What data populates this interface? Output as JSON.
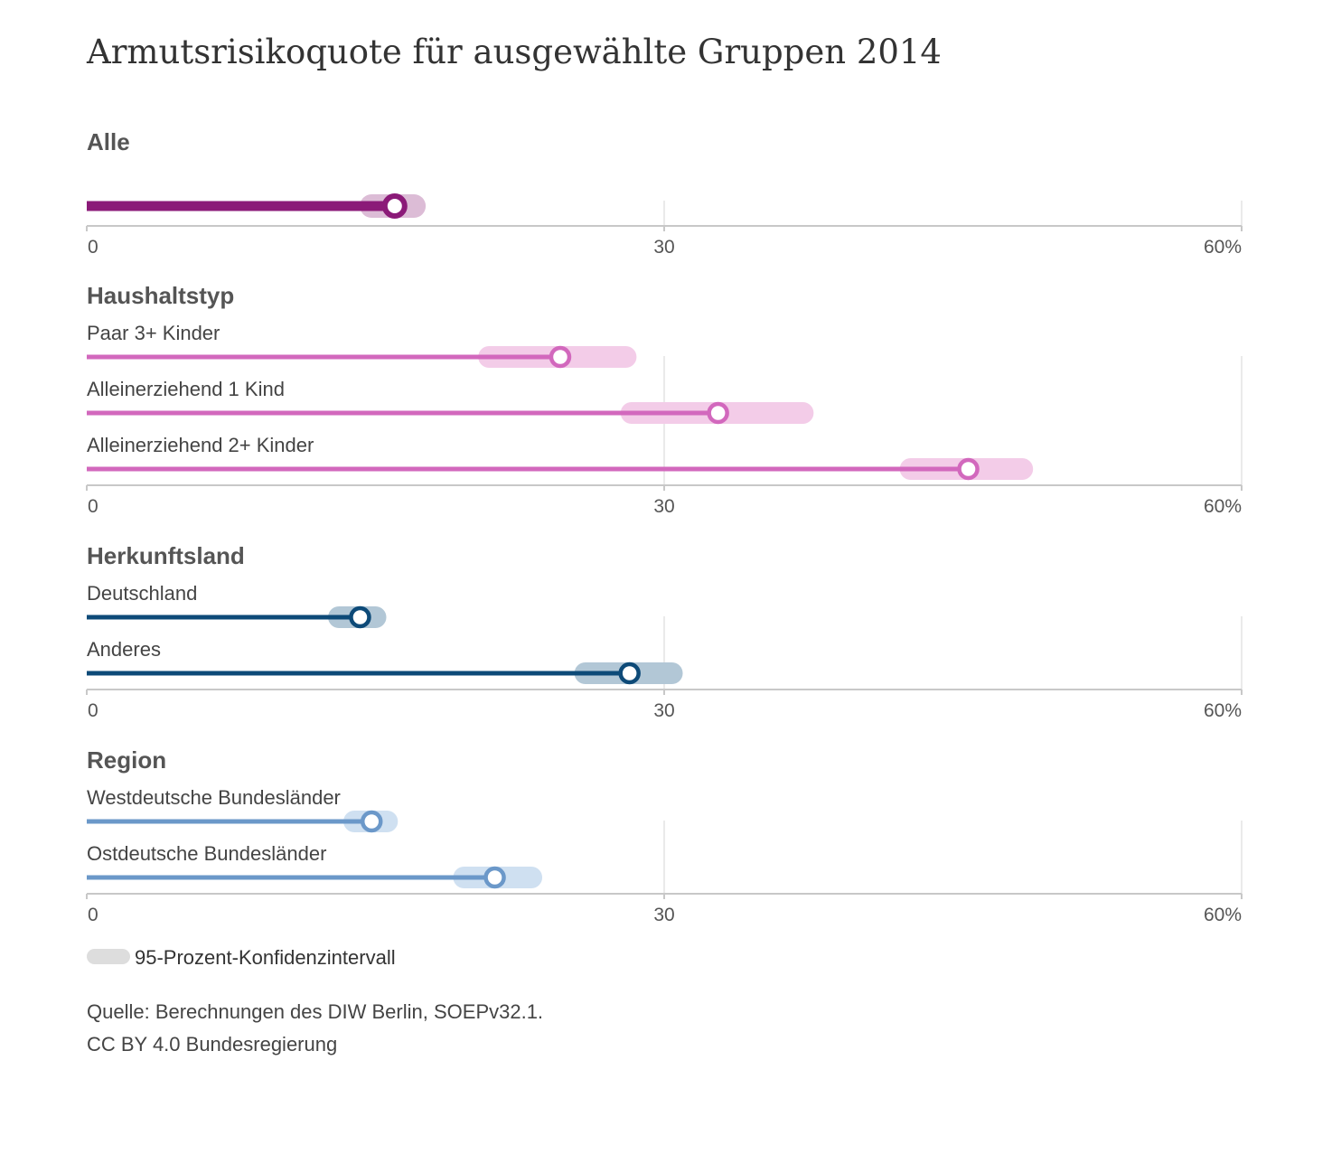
{
  "chart_data": {
    "type": "dot-range",
    "title": "Armutsrisikoquote für ausgewählte Gruppen 2014",
    "xlim": [
      0,
      60
    ],
    "ticks": [
      "0",
      "30",
      "60%"
    ],
    "tick_values": [
      0,
      30,
      60
    ],
    "grid": true,
    "groups": [
      {
        "name": "Alle",
        "color": "#8b1a78",
        "ci_color": "#dcbcd6",
        "bold": true,
        "rows": [
          {
            "label": "",
            "value": 16.0,
            "ci": [
              14.8,
              17.0
            ]
          }
        ]
      },
      {
        "name": "Haushaltstyp",
        "color": "#d268bd",
        "ci_color": "#f3cce8",
        "rows": [
          {
            "label": "Paar 3+ Kinder",
            "value": 24.6,
            "ci": [
              20.9,
              28.0
            ]
          },
          {
            "label": "Alleinerziehend 1 Kind",
            "value": 32.8,
            "ci": [
              28.3,
              37.2
            ]
          },
          {
            "label": "Alleinerziehend 2+ Kinder",
            "value": 45.8,
            "ci": [
              42.8,
              48.6
            ]
          }
        ]
      },
      {
        "name": "Herkunftsland",
        "color": "#0d4a78",
        "ci_color": "#b2c7d6",
        "rows": [
          {
            "label": "Deutschland",
            "value": 14.2,
            "ci": [
              13.1,
              15.0
            ]
          },
          {
            "label": "Anderes",
            "value": 28.2,
            "ci": [
              25.9,
              30.4
            ]
          }
        ]
      },
      {
        "name": "Region",
        "color": "#6b98c9",
        "ci_color": "#cfe0f1",
        "rows": [
          {
            "label": "Westdeutsche Bundesländer",
            "value": 14.8,
            "ci": [
              13.9,
              15.6
            ]
          },
          {
            "label": "Ostdeutsche Bundesländer",
            "value": 21.2,
            "ci": [
              19.6,
              23.1
            ]
          }
        ]
      }
    ],
    "legend": {
      "label": "95-Prozent-Konfidenzintervall",
      "color": "#dddddd",
      "position": "bottom-left"
    }
  },
  "source_lines": [
    "Quelle: Berechnungen des DIW Berlin, SOEPv32.1.",
    "CC BY 4.0 Bundesregierung"
  ]
}
